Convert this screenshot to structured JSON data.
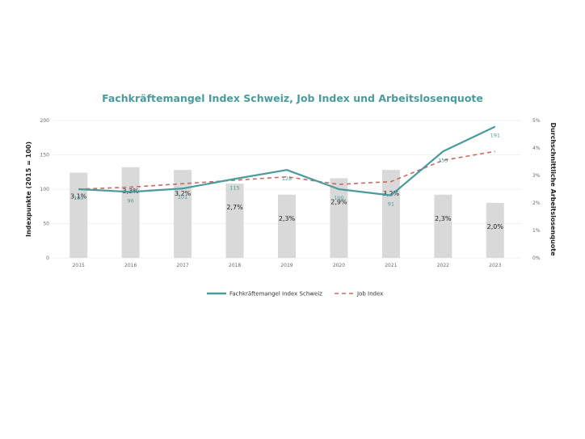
{
  "chart_data": {
    "type": "bar",
    "title": "Fachkräftemangel Index Schweiz, Job Index und Arbeitslosenquote",
    "ylabel": "Indexpunkte (2015 = 100)",
    "y2label": "Durchschnittliche Arbeitslosenquote",
    "categories": [
      "2015",
      "2016",
      "2017",
      "2018",
      "2019",
      "2020",
      "2021",
      "2022",
      "2023"
    ],
    "ylim": [
      0,
      200
    ],
    "yticks": [
      "0",
      "50",
      "100",
      "150",
      "200"
    ],
    "y2lim": [
      0,
      5
    ],
    "y2ticks": [
      "0%",
      "1%",
      "2%",
      "3%",
      "4%",
      "5%"
    ],
    "bars": {
      "axis": "right",
      "values": [
        3.1,
        3.3,
        3.2,
        2.7,
        2.3,
        2.9,
        3.2,
        2.3,
        2.0
      ],
      "labels": [
        "3,1%",
        "3,3%",
        "3,2%",
        "2,7%",
        "2,3%",
        "2,9%",
        "3,2%",
        "2,3%",
        "2,0%"
      ],
      "color": "#d9d9d9"
    },
    "series": [
      {
        "name": "Fachkräftemangel Index Schweiz",
        "axis": "left",
        "style": "solid",
        "color": "#4a9b9c",
        "values": [
          100,
          96,
          101,
          115,
          128,
          100,
          91,
          155,
          191
        ],
        "labels": [
          "100",
          "96",
          "101",
          "115",
          "128",
          "100",
          "91",
          "155",
          "191"
        ]
      },
      {
        "name": "Job Index",
        "axis": "left",
        "style": "dashed",
        "color": "#c96a62",
        "values": [
          100,
          103,
          108,
          113,
          118,
          107,
          111,
          142,
          155
        ]
      }
    ],
    "legend": "bottom-center",
    "grid": true
  }
}
